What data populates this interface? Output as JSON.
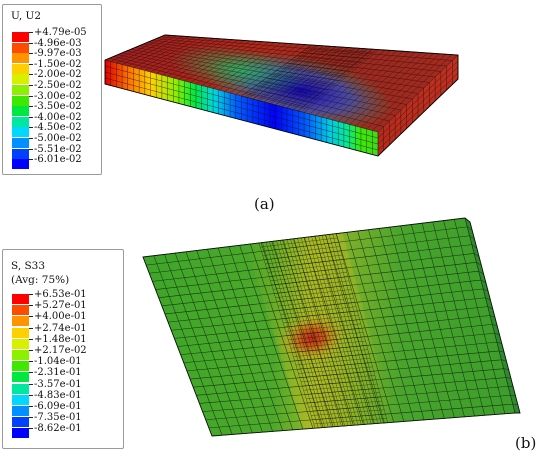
{
  "panel_a": {
    "legend_title": "U, U2",
    "legend_entries": [
      {
        "label": "+4.79e-05",
        "color": "#ff0000"
      },
      {
        "label": "-4.96e-03",
        "color": "#ff4b00"
      },
      {
        "label": "-9.97e-03",
        "color": "#ff9400"
      },
      {
        "label": "-1.50e-02",
        "color": "#ffd000"
      },
      {
        "label": "-2.00e-02",
        "color": "#d6f000"
      },
      {
        "label": "-2.50e-02",
        "color": "#8cf000"
      },
      {
        "label": "-3.00e-02",
        "color": "#3ee800"
      },
      {
        "label": "-3.50e-02",
        "color": "#00e840"
      },
      {
        "label": "-4.00e-02",
        "color": "#00e8a0"
      },
      {
        "label": "-4.50e-02",
        "color": "#00d8ff"
      },
      {
        "label": "-5.00e-02",
        "color": "#0090ff"
      },
      {
        "label": "-5.51e-02",
        "color": "#0040ff"
      },
      {
        "label": "-6.01e-02",
        "color": "#0000ff"
      }
    ],
    "caption": "(a)"
  },
  "panel_b": {
    "legend_title_line1": "S, S33",
    "legend_title_line2": "(Avg: 75%)",
    "legend_entries": [
      {
        "label": "+6.53e-01",
        "color": "#ff0000"
      },
      {
        "label": "+5.27e-01",
        "color": "#ff4b00"
      },
      {
        "label": "+4.00e-01",
        "color": "#ff9400"
      },
      {
        "label": "+2.74e-01",
        "color": "#ffd000"
      },
      {
        "label": "+1.48e-01",
        "color": "#d6f000"
      },
      {
        "label": "+2.17e-02",
        "color": "#8cf000"
      },
      {
        "label": "-1.04e-01",
        "color": "#3ee800"
      },
      {
        "label": "-2.31e-01",
        "color": "#00e840"
      },
      {
        "label": "-3.57e-01",
        "color": "#00e8a0"
      },
      {
        "label": "-4.83e-01",
        "color": "#00d8ff"
      },
      {
        "label": "-6.09e-01",
        "color": "#0090ff"
      },
      {
        "label": "-7.35e-01",
        "color": "#0040ff"
      },
      {
        "label": "-8.62e-01",
        "color": "#0000ff"
      }
    ],
    "caption": "(b)"
  }
}
